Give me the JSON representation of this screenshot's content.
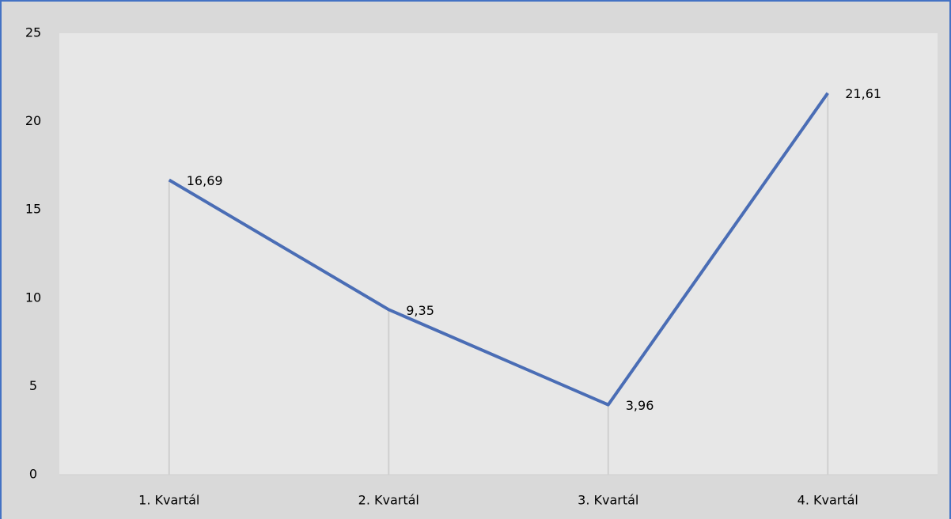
{
  "chart_data": {
    "type": "line",
    "categories": [
      "1. Kvartál",
      "2. Kvartál",
      "3. Kvartál",
      "4. Kvartál"
    ],
    "values": [
      16.69,
      9.35,
      3.96,
      21.61
    ],
    "value_labels": [
      "16,69",
      "9,35",
      "3,96",
      "21,61"
    ],
    "color": "#4a6db5",
    "ylim": [
      0,
      25
    ],
    "yticks": [
      0,
      5,
      10,
      15,
      20,
      25
    ],
    "grid": false,
    "drop_lines": true
  }
}
